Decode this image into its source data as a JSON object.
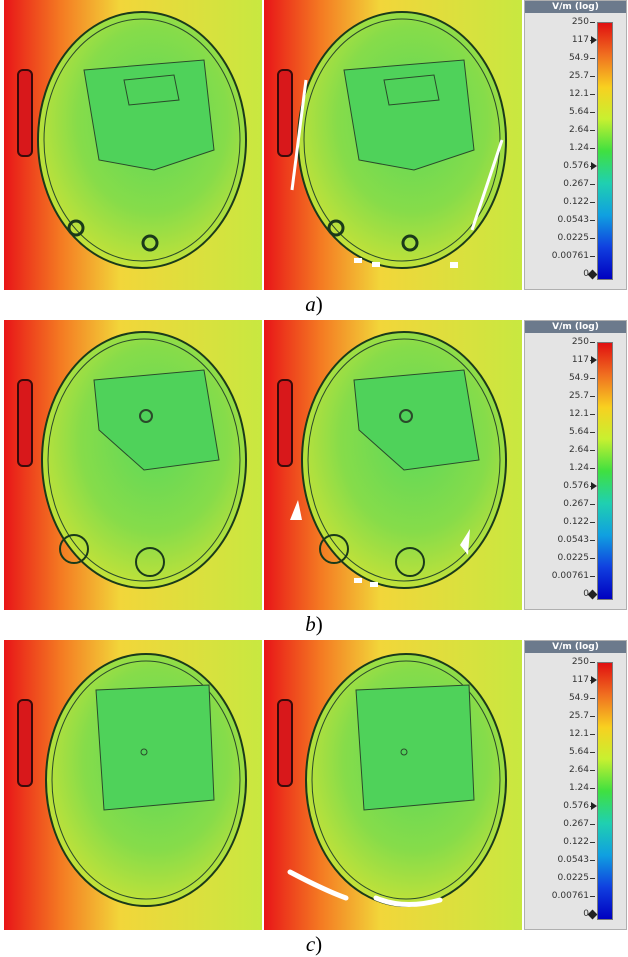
{
  "colorbar": {
    "title": "V/m (log)",
    "ticks": [
      "250",
      "117",
      "54.9",
      "25.7",
      "12.1",
      "5.64",
      "2.64",
      "1.24",
      "0.576",
      "0.267",
      "0.122",
      "0.0543",
      "0.0225",
      "0.00761",
      "0"
    ],
    "gradient_colors": [
      "#e01010",
      "#f07020",
      "#f8d020",
      "#c8f030",
      "#40e040",
      "#20d0b0",
      "#10a0e0",
      "#1040e0",
      "#0000c0"
    ]
  },
  "panels": [
    {
      "caption_letter": "a",
      "caption_suffix": ")"
    },
    {
      "caption_letter": "b",
      "caption_suffix": ")"
    },
    {
      "caption_letter": "c",
      "caption_suffix": ")"
    }
  ],
  "field_colors": {
    "high": "#e8151a",
    "mid": "#f5a623",
    "low": "#f0e83a",
    "inside": "#7ed957"
  }
}
